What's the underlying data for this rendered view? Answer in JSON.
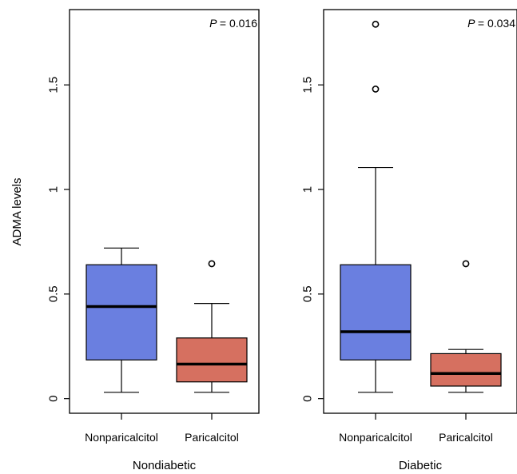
{
  "ylabel": "ADMA levels",
  "chart_data": [
    {
      "type": "box",
      "xlabel": "Nondiabetic",
      "annotation": {
        "p_label": "P",
        "p_value": "= 0.016"
      },
      "ylim": [
        -0.07,
        1.86
      ],
      "yticks": [
        0,
        0.5,
        1,
        1.5
      ],
      "ytick_labels": [
        "0",
        "0.5",
        "1",
        "1.5"
      ],
      "categories": [
        "Nonparicalcitol",
        "Paricalcitol"
      ],
      "boxes": [
        {
          "name": "Nonparicalcitol",
          "color": "#6a7fe0",
          "whisker_low": 0.03,
          "q1": 0.185,
          "median": 0.44,
          "q3": 0.64,
          "whisker_high": 0.72,
          "outliers": []
        },
        {
          "name": "Paricalcitol",
          "color": "#d67060",
          "whisker_low": 0.03,
          "q1": 0.08,
          "median": 0.165,
          "q3": 0.29,
          "whisker_high": 0.455,
          "outliers": [
            0.645
          ]
        }
      ]
    },
    {
      "type": "box",
      "xlabel": "Diabetic",
      "annotation": {
        "p_label": "P",
        "p_value": "= 0.034"
      },
      "ylim": [
        -0.07,
        1.86
      ],
      "yticks": [
        0,
        0.5,
        1,
        1.5
      ],
      "ytick_labels": [
        "0",
        "0.5",
        "1",
        "1.5"
      ],
      "categories": [
        "Nonparicalcitol",
        "Paricalcitol"
      ],
      "boxes": [
        {
          "name": "Nonparicalcitol",
          "color": "#6a7fe0",
          "whisker_low": 0.03,
          "q1": 0.185,
          "median": 0.32,
          "q3": 0.64,
          "whisker_high": 1.105,
          "outliers": [
            1.48,
            1.79
          ]
        },
        {
          "name": "Paricalcitol",
          "color": "#d67060",
          "whisker_low": 0.03,
          "q1": 0.06,
          "median": 0.12,
          "q3": 0.215,
          "whisker_high": 0.235,
          "outliers": [
            0.645
          ]
        }
      ]
    }
  ]
}
